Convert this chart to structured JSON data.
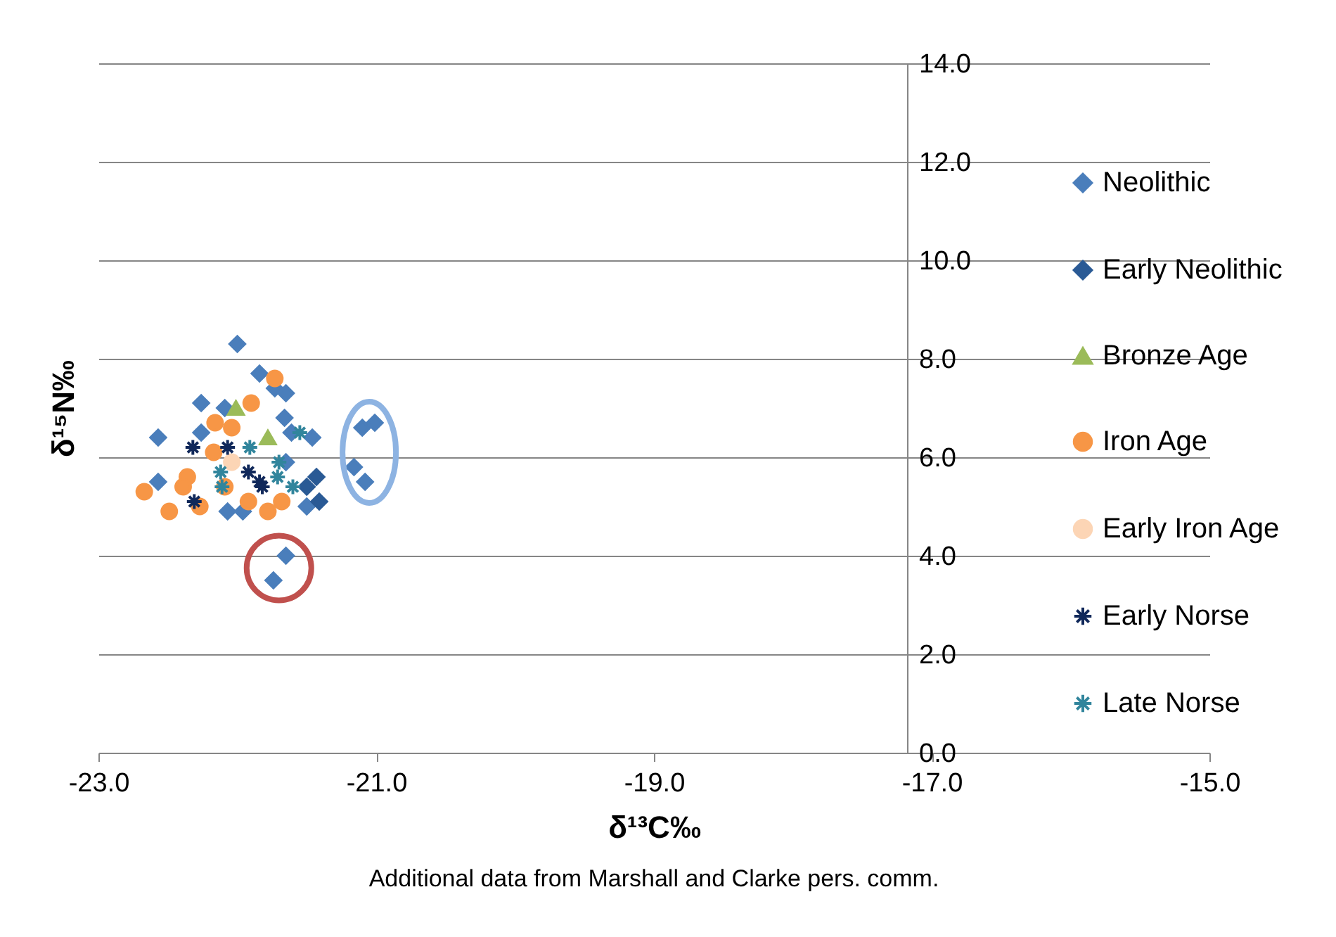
{
  "chart_data": {
    "type": "scatter",
    "xlabel": "δ¹³C‰",
    "ylabel": "δ¹⁵N‰",
    "annotations": [
      "Additional data from Marshall and Clarke pers. comm."
    ],
    "xlim": [
      -23,
      -15
    ],
    "xticks": [
      {
        "value": -23,
        "label": "-23.0"
      },
      {
        "value": -21,
        "label": "-21.0"
      },
      {
        "value": -19,
        "label": "-19.0"
      },
      {
        "value": -17,
        "label": "-17.0"
      },
      {
        "value": -15,
        "label": "-15.0"
      }
    ],
    "ylim": [
      0,
      14
    ],
    "yticks": [
      {
        "value": 0,
        "label": "0.0"
      },
      {
        "value": 2,
        "label": "2.0"
      },
      {
        "value": 4,
        "label": "4.0"
      },
      {
        "value": 6,
        "label": "6.0"
      },
      {
        "value": 8,
        "label": "8.0"
      },
      {
        "value": 10,
        "label": "10.0"
      },
      {
        "value": 12,
        "label": "12.0"
      },
      {
        "value": 14,
        "label": "14.0"
      }
    ],
    "grid": "y",
    "legend": "right",
    "series": [
      {
        "name": "Neolithic",
        "color": "#4a7ebb",
        "marker": "diamond",
        "x": [
          -22.0,
          -22.57,
          -22.26,
          -21.84,
          -21.73,
          -21.65,
          -21.66,
          -22.09,
          -22.26,
          -22.57,
          -21.46,
          -21.5,
          -22.07,
          -21.96,
          -21.1,
          -21.01,
          -21.16,
          -21.08,
          -21.65,
          -21.74,
          -21.61,
          -21.65
        ],
        "values": [
          8.3,
          6.4,
          7.1,
          7.7,
          7.4,
          7.3,
          6.8,
          7.0,
          6.5,
          5.5,
          6.4,
          5.0,
          4.9,
          4.9,
          6.6,
          6.7,
          5.8,
          5.5,
          4.0,
          3.5,
          6.5,
          5.9
        ]
      },
      {
        "name": "Early Neolithic",
        "color": "#2a5a95",
        "marker": "diamond",
        "x": [
          -21.43,
          -21.5,
          -21.41
        ],
        "values": [
          5.6,
          5.4,
          5.1
        ]
      },
      {
        "name": "Bronze Age",
        "color": "#9bbb59",
        "marker": "triangle",
        "x": [
          -22.01,
          -21.78
        ],
        "values": [
          7.0,
          6.4
        ]
      },
      {
        "name": "Iron Age",
        "color": "#f79646",
        "marker": "circle",
        "x": [
          -21.73,
          -21.9,
          -22.16,
          -22.04,
          -22.17,
          -22.36,
          -22.67,
          -22.49,
          -22.27,
          -22.39,
          -22.09,
          -21.92,
          -21.78,
          -21.68
        ],
        "values": [
          7.6,
          7.1,
          6.7,
          6.6,
          6.1,
          5.6,
          5.3,
          4.9,
          5.0,
          5.4,
          5.4,
          5.1,
          4.9,
          5.1
        ]
      },
      {
        "name": "Early Iron Age",
        "color": "#fcd5b5",
        "marker": "circle",
        "x": [
          -22.04
        ],
        "values": [
          5.9
        ]
      },
      {
        "name": "Early Norse",
        "color": "#10285a",
        "marker": "cross",
        "x": [
          -22.32,
          -22.07,
          -22.31,
          -21.92,
          -21.84,
          -21.82
        ],
        "values": [
          6.2,
          6.2,
          5.1,
          5.7,
          5.5,
          5.4
        ]
      },
      {
        "name": "Late Norse",
        "color": "#31859c",
        "marker": "cross",
        "x": [
          -21.55,
          -21.91,
          -22.12,
          -22.11,
          -21.7,
          -21.6,
          -21.71
        ],
        "values": [
          6.5,
          6.2,
          5.7,
          5.4,
          5.9,
          5.4,
          5.6
        ]
      }
    ]
  }
}
